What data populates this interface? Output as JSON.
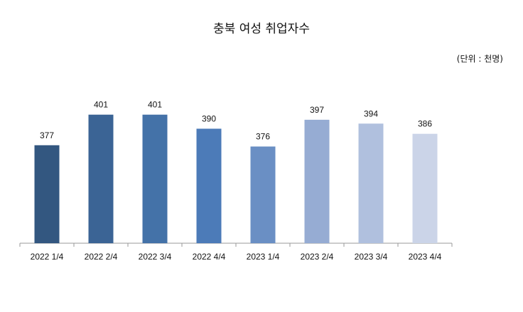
{
  "chart_data": {
    "type": "bar",
    "title": "충북 여성 취업자수",
    "unit": "(단위 : 천명)",
    "categories": [
      "2022 1/4",
      "2022 2/4",
      "2022 3/4",
      "2022 4/4",
      "2023 1/4",
      "2023 2/4",
      "2023 3/4",
      "2023 4/4"
    ],
    "values": [
      377,
      401,
      401,
      390,
      376,
      397,
      394,
      386
    ],
    "colors": [
      "#335780",
      "#3b6495",
      "#4472a8",
      "#4c7bb8",
      "#6a8fc4",
      "#96acd3",
      "#b0c0de",
      "#cbd4e8"
    ],
    "ylim": [
      300,
      412
    ],
    "grid": false,
    "legend": "none"
  }
}
